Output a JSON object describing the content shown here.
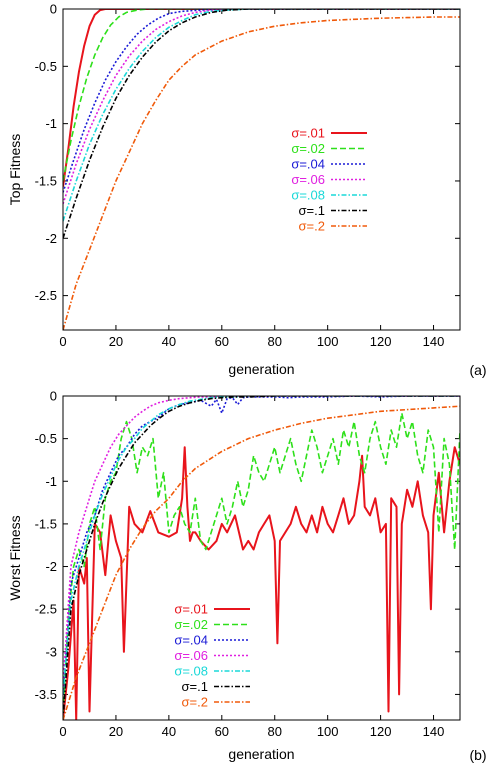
{
  "colors": {
    "s01": "#e8141c",
    "s02": "#2ee01a",
    "s04": "#1a1ad6",
    "s06": "#e020e0",
    "s08": "#1ad8d8",
    "s1": "#000000",
    "s2": "#f05a0a"
  },
  "chart_data": [
    {
      "type": "line",
      "panel_label": "(a)",
      "xlabel": "generation",
      "ylabel": "Top Fitness",
      "xlim": [
        0,
        150
      ],
      "ylim": [
        -2.8,
        0
      ],
      "xticks": [
        "0",
        "20",
        "40",
        "60",
        "80",
        "100",
        "120",
        "140"
      ],
      "yticks": [
        "0",
        "-0.5",
        "-1",
        "-1.5",
        "-2",
        "-2.5"
      ],
      "legend_position": "center-right",
      "series": [
        {
          "name": "σ=.01",
          "color": "s01",
          "dash": "solid",
          "x": [
            0,
            2,
            4,
            6,
            8,
            10,
            12,
            14,
            16,
            18,
            20,
            150
          ],
          "y": [
            -1.55,
            -1.22,
            -0.85,
            -0.55,
            -0.32,
            -0.15,
            -0.05,
            -0.01,
            0,
            0,
            0,
            0
          ]
        },
        {
          "name": "σ=.02",
          "color": "s02",
          "dash": "dash",
          "x": [
            0,
            3,
            6,
            9,
            12,
            15,
            18,
            21,
            24,
            28,
            32,
            150
          ],
          "y": [
            -1.5,
            -1.15,
            -0.85,
            -0.6,
            -0.4,
            -0.25,
            -0.14,
            -0.07,
            -0.03,
            -0.01,
            0,
            0
          ]
        },
        {
          "name": "σ=.04",
          "color": "s04",
          "dash": "dot",
          "x": [
            0,
            4,
            8,
            12,
            16,
            20,
            24,
            28,
            32,
            36,
            40,
            45,
            52,
            60,
            150
          ],
          "y": [
            -1.6,
            -1.32,
            -1.05,
            -0.82,
            -0.62,
            -0.46,
            -0.33,
            -0.22,
            -0.14,
            -0.08,
            -0.04,
            -0.02,
            -0.01,
            0,
            0
          ]
        },
        {
          "name": "σ=.06",
          "color": "s06",
          "dash": "dot",
          "x": [
            0,
            5,
            10,
            15,
            20,
            25,
            30,
            35,
            40,
            45,
            50,
            56,
            62,
            150
          ],
          "y": [
            -1.7,
            -1.35,
            -1.05,
            -0.8,
            -0.58,
            -0.41,
            -0.28,
            -0.18,
            -0.11,
            -0.06,
            -0.03,
            -0.01,
            0,
            0
          ]
        },
        {
          "name": "σ=.08",
          "color": "s08",
          "dash": "dashdot",
          "x": [
            0,
            5,
            10,
            15,
            20,
            25,
            30,
            35,
            40,
            45,
            50,
            56,
            62,
            70,
            150
          ],
          "y": [
            -1.85,
            -1.5,
            -1.18,
            -0.92,
            -0.7,
            -0.52,
            -0.37,
            -0.25,
            -0.16,
            -0.1,
            -0.05,
            -0.02,
            -0.01,
            0,
            0
          ]
        },
        {
          "name": "σ=.1",
          "color": "s1",
          "dash": "dashdot",
          "x": [
            0,
            5,
            10,
            15,
            20,
            25,
            30,
            35,
            40,
            45,
            50,
            56,
            62,
            70,
            150
          ],
          "y": [
            -2.0,
            -1.65,
            -1.32,
            -1.03,
            -0.78,
            -0.58,
            -0.42,
            -0.29,
            -0.19,
            -0.12,
            -0.07,
            -0.03,
            -0.01,
            0,
            0
          ]
        },
        {
          "name": "σ=.2",
          "color": "s2",
          "dash": "dashdot",
          "x": [
            0,
            5,
            10,
            15,
            20,
            25,
            30,
            35,
            40,
            45,
            50,
            60,
            70,
            80,
            90,
            100,
            110,
            120,
            130,
            140,
            150
          ],
          "y": [
            -2.8,
            -2.4,
            -2.1,
            -1.8,
            -1.5,
            -1.25,
            -1.0,
            -0.8,
            -0.62,
            -0.5,
            -0.4,
            -0.28,
            -0.2,
            -0.15,
            -0.12,
            -0.1,
            -0.09,
            -0.08,
            -0.075,
            -0.07,
            -0.07
          ]
        }
      ]
    },
    {
      "type": "line",
      "panel_label": "(b)",
      "xlabel": "generation",
      "ylabel": "Worst Fitness",
      "xlim": [
        0,
        150
      ],
      "ylim": [
        -3.8,
        0
      ],
      "xticks": [
        "0",
        "20",
        "40",
        "60",
        "80",
        "100",
        "120",
        "140"
      ],
      "yticks": [
        "0",
        "-0.5",
        "-1",
        "-1.5",
        "-2",
        "-2.5",
        "-3",
        "-3.5"
      ],
      "legend_position": "bottom-center",
      "series": [
        {
          "name": "σ=.01",
          "color": "s01",
          "dash": "solid",
          "x": [
            0,
            2,
            4,
            5,
            6,
            8,
            9,
            10,
            12,
            14,
            16,
            18,
            20,
            22,
            23,
            25,
            27,
            30,
            33,
            36,
            40,
            43,
            45,
            46,
            47,
            48,
            49,
            50,
            52,
            55,
            58,
            60,
            62,
            65,
            68,
            70,
            72,
            74,
            76,
            78,
            80,
            81,
            82,
            84,
            86,
            88,
            90,
            92,
            94,
            96,
            98,
            100,
            102,
            104,
            106,
            108,
            110,
            112,
            113,
            114,
            116,
            118,
            120,
            122,
            123,
            124,
            126,
            127,
            128,
            130,
            132,
            134,
            136,
            138,
            139,
            140,
            142,
            144,
            146,
            148,
            150
          ],
          "y": [
            -3.8,
            -3.2,
            -2.4,
            -3.8,
            -2.0,
            -2.2,
            -1.9,
            -3.7,
            -1.5,
            -1.6,
            -2.1,
            -1.4,
            -1.7,
            -1.9,
            -3.0,
            -1.3,
            -1.5,
            -1.6,
            -1.35,
            -1.6,
            -1.65,
            -1.6,
            -1.2,
            -0.6,
            -1.3,
            -1.7,
            -1.6,
            -1.6,
            -1.7,
            -1.8,
            -1.7,
            -1.5,
            -1.6,
            -1.4,
            -1.8,
            -1.7,
            -1.8,
            -1.6,
            -1.5,
            -1.4,
            -1.7,
            -2.9,
            -1.7,
            -1.6,
            -1.5,
            -1.3,
            -1.5,
            -1.6,
            -1.4,
            -1.6,
            -1.3,
            -1.5,
            -1.6,
            -1.4,
            -1.2,
            -1.5,
            -1.4,
            -1.0,
            -0.7,
            -1.3,
            -1.4,
            -1.2,
            -1.6,
            -1.5,
            -3.7,
            -1.2,
            -1.3,
            -3.5,
            -1.5,
            -1.1,
            -1.3,
            -1.0,
            -1.4,
            -1.6,
            -2.5,
            -1.4,
            -0.9,
            -1.6,
            -1.0,
            -0.6,
            -0.8
          ]
        },
        {
          "name": "σ=.02",
          "color": "s02",
          "dash": "dash",
          "x": [
            0,
            2,
            4,
            6,
            8,
            10,
            12,
            14,
            16,
            18,
            20,
            22,
            24,
            26,
            28,
            30,
            32,
            34,
            36,
            38,
            40,
            42,
            44,
            46,
            48,
            50,
            52,
            54,
            56,
            58,
            60,
            62,
            64,
            66,
            68,
            70,
            72,
            74,
            76,
            78,
            80,
            82,
            84,
            86,
            88,
            90,
            92,
            94,
            96,
            98,
            100,
            102,
            104,
            106,
            108,
            110,
            112,
            114,
            116,
            118,
            120,
            122,
            124,
            126,
            128,
            130,
            132,
            134,
            136,
            138,
            140,
            142,
            144,
            146,
            148,
            150
          ],
          "y": [
            -3.7,
            -2.6,
            -2.0,
            -1.8,
            -2.0,
            -1.5,
            -1.3,
            -1.8,
            -1.2,
            -1.0,
            -0.9,
            -0.5,
            -0.3,
            -0.5,
            -0.9,
            -0.6,
            -0.7,
            -0.5,
            -1.2,
            -0.9,
            -1.6,
            -1.4,
            -1.3,
            -1.5,
            -1.6,
            -1.2,
            -1.7,
            -1.8,
            -1.6,
            -1.4,
            -1.2,
            -1.5,
            -1.3,
            -1.0,
            -1.3,
            -1.1,
            -0.7,
            -0.9,
            -1.0,
            -0.8,
            -0.6,
            -0.9,
            -0.7,
            -0.5,
            -0.8,
            -1.0,
            -0.7,
            -0.4,
            -0.6,
            -0.9,
            -0.7,
            -0.5,
            -0.8,
            -0.4,
            -0.6,
            -0.3,
            -0.7,
            -0.9,
            -0.5,
            -0.3,
            -0.6,
            -0.8,
            -0.4,
            -0.6,
            -0.2,
            -0.5,
            -0.3,
            -0.7,
            -0.9,
            -0.4,
            -0.6,
            -1.6,
            -0.5,
            -0.8,
            -1.8,
            -0.4
          ]
        },
        {
          "name": "σ=.04",
          "color": "s04",
          "dash": "dot",
          "x": [
            0,
            3,
            6,
            9,
            12,
            15,
            18,
            21,
            24,
            27,
            30,
            33,
            36,
            40,
            44,
            48,
            52,
            56,
            58,
            60,
            62,
            64,
            66,
            68,
            70,
            80,
            85,
            90,
            100,
            110,
            120,
            130,
            140,
            150
          ],
          "y": [
            -3.5,
            -2.2,
            -1.9,
            -1.6,
            -1.4,
            -1.1,
            -0.9,
            -0.7,
            -0.6,
            -0.45,
            -0.35,
            -0.3,
            -0.25,
            -0.15,
            -0.1,
            -0.08,
            -0.05,
            -0.12,
            -0.04,
            -0.2,
            -0.03,
            -0.02,
            -0.1,
            -0.02,
            -0.01,
            -0.01,
            -0.02,
            -0.01,
            -0.01,
            0,
            -0.01,
            0,
            0,
            0
          ]
        },
        {
          "name": "σ=.06",
          "color": "s06",
          "dash": "dot",
          "x": [
            0,
            3,
            6,
            9,
            12,
            15,
            18,
            21,
            24,
            27,
            30,
            33,
            36,
            40,
            44,
            48,
            52,
            56,
            60,
            70,
            80,
            90,
            100,
            110,
            120,
            130,
            140,
            150
          ],
          "y": [
            -3.4,
            -2.0,
            -1.6,
            -1.3,
            -1.0,
            -0.8,
            -0.6,
            -0.45,
            -0.35,
            -0.25,
            -0.18,
            -0.12,
            -0.08,
            -0.05,
            -0.03,
            -0.02,
            -0.01,
            -0.01,
            0,
            0,
            0,
            0,
            0,
            0,
            0,
            0,
            0,
            0
          ]
        },
        {
          "name": "σ=.08",
          "color": "s08",
          "dash": "dashdot",
          "x": [
            0,
            3,
            6,
            9,
            12,
            15,
            18,
            21,
            24,
            27,
            30,
            33,
            36,
            40,
            44,
            48,
            52,
            56,
            60,
            65,
            70,
            80,
            90,
            100,
            110,
            120,
            130,
            140,
            150
          ],
          "y": [
            -3.5,
            -2.4,
            -2.0,
            -1.7,
            -1.4,
            -1.15,
            -0.95,
            -0.75,
            -0.6,
            -0.5,
            -0.38,
            -0.3,
            -0.22,
            -0.15,
            -0.1,
            -0.06,
            -0.04,
            -0.02,
            -0.01,
            -0.01,
            0,
            0,
            0,
            0,
            0,
            0,
            0,
            0,
            0
          ]
        },
        {
          "name": "σ=.1",
          "color": "s1",
          "dash": "dashdot",
          "x": [
            0,
            3,
            6,
            9,
            12,
            15,
            18,
            21,
            24,
            27,
            30,
            33,
            36,
            40,
            44,
            48,
            52,
            56,
            60,
            65,
            70,
            80,
            90,
            100,
            110,
            120,
            130,
            140,
            150
          ],
          "y": [
            -3.8,
            -2.5,
            -2.1,
            -1.8,
            -1.5,
            -1.25,
            -1.05,
            -0.85,
            -0.7,
            -0.55,
            -0.45,
            -0.35,
            -0.27,
            -0.18,
            -0.12,
            -0.08,
            -0.05,
            -0.03,
            -0.02,
            -0.01,
            -0.01,
            0,
            0,
            0,
            0,
            0,
            0,
            0,
            0
          ]
        },
        {
          "name": "σ=.2",
          "color": "s2",
          "dash": "dashdot",
          "x": [
            0,
            5,
            10,
            15,
            20,
            25,
            30,
            35,
            40,
            45,
            50,
            60,
            70,
            80,
            90,
            100,
            110,
            120,
            130,
            140,
            150
          ],
          "y": [
            -3.8,
            -3.3,
            -2.9,
            -2.5,
            -2.1,
            -1.8,
            -1.55,
            -1.35,
            -1.2,
            -1.0,
            -0.85,
            -0.65,
            -0.5,
            -0.4,
            -0.32,
            -0.26,
            -0.22,
            -0.18,
            -0.16,
            -0.14,
            -0.12
          ]
        }
      ]
    }
  ]
}
